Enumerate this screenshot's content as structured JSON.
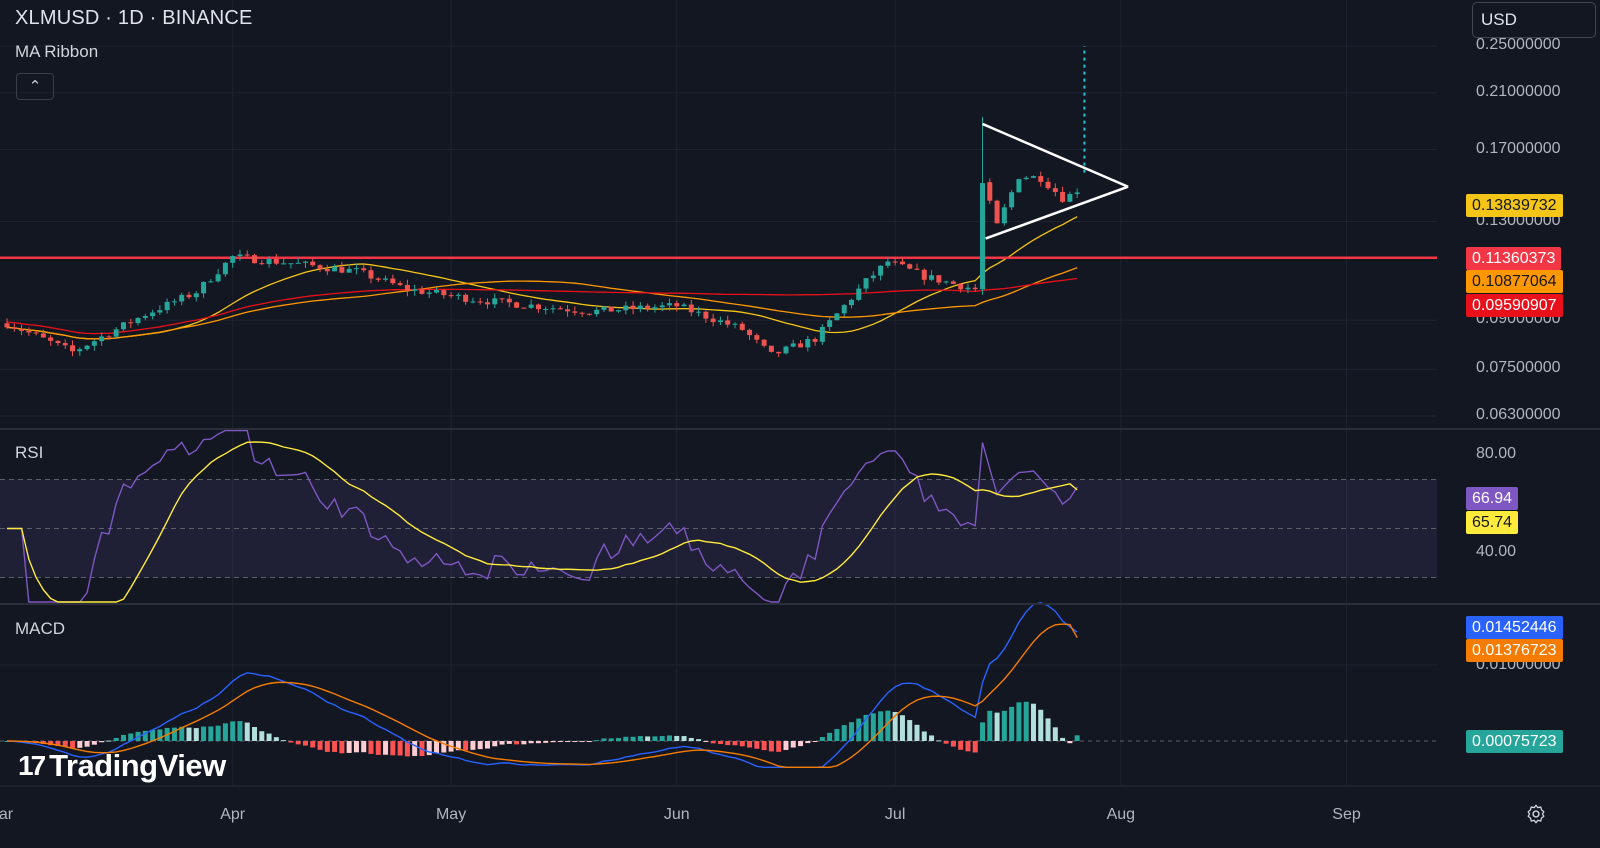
{
  "header": {
    "title": "XLMUSD · 1D · BINANCE",
    "currency": "USD",
    "collapse_icon": "chevron-up-icon"
  },
  "indicators": {
    "ma_label": "MA Ribbon",
    "rsi_label": "RSI",
    "macd_label": "MACD"
  },
  "price_axis": {
    "ticks": [
      "0.25000000",
      "0.21000000",
      "0.17000000",
      "0.13000000",
      "0.09000000",
      "0.07500000",
      "0.06300000"
    ],
    "badges": [
      {
        "value": "0.13839732",
        "bg": "#f5c518",
        "fg": "#131722"
      },
      {
        "value": "0.11360373",
        "bg": "#f23645",
        "fg": "#ffffff"
      },
      {
        "value": "0.10877064",
        "bg": "#ff9800",
        "fg": "#131722"
      },
      {
        "value": "0.09590907",
        "bg": "#e8101a",
        "fg": "#ffffff"
      }
    ]
  },
  "rsi_axis": {
    "ticks": [
      "80.00",
      "40.00"
    ],
    "badges": [
      {
        "value": "66.94",
        "bg": "#7e57c2",
        "fg": "#ffffff"
      },
      {
        "value": "65.74",
        "bg": "#ffeb3b",
        "fg": "#131722"
      }
    ]
  },
  "macd_axis": {
    "ticks": [
      "0.01000000"
    ],
    "badges": [
      {
        "value": "0.01452446",
        "bg": "#2962ff",
        "fg": "#ffffff"
      },
      {
        "value": "0.01376723",
        "bg": "#f57c00",
        "fg": "#ffffff"
      },
      {
        "value": "0.00075723",
        "bg": "#26a69a",
        "fg": "#ffffff"
      }
    ]
  },
  "time_axis": {
    "labels": [
      "ar",
      "Apr",
      "May",
      "Jun",
      "Jul",
      "Aug",
      "Sep"
    ]
  },
  "watermark": "TradingView",
  "settings_icon": "gear-icon",
  "colors": {
    "background": "#131722",
    "up": "#26a69a",
    "down": "#ef5350",
    "support_line": "#f23645",
    "ma_fast": "#f5c518",
    "ma_mid": "#ff9800",
    "ma_slow": "#e8101a",
    "rsi": "#7e57c2",
    "rsi_ma": "#ffeb3b",
    "macd": "#2962ff",
    "signal": "#f57c00"
  },
  "chart_data": {
    "type": "candlestick",
    "symbol": "XLMUSD",
    "interval": "1D",
    "exchange": "BINANCE",
    "price_ylim_log": [
      0.06,
      0.26
    ],
    "support_level": 0.11360373,
    "last_close": 0.1449,
    "x_dates": [
      "2023-03-01",
      "2023-07-26"
    ],
    "close_path": [
      [
        "2023-03-01",
        0.089
      ],
      [
        "2023-03-10",
        0.08
      ],
      [
        "2023-03-20",
        0.092
      ],
      [
        "2023-03-27",
        0.1
      ],
      [
        "2023-04-01",
        0.114
      ],
      [
        "2023-04-10",
        0.111
      ],
      [
        "2023-04-18",
        0.108
      ],
      [
        "2023-04-25",
        0.101
      ],
      [
        "2023-05-05",
        0.097
      ],
      [
        "2023-05-20",
        0.093
      ],
      [
        "2023-06-01",
        0.095
      ],
      [
        "2023-06-10",
        0.087
      ],
      [
        "2023-06-14",
        0.079
      ],
      [
        "2023-06-20",
        0.084
      ],
      [
        "2023-06-27",
        0.104
      ],
      [
        "2023-06-30",
        0.112
      ],
      [
        "2023-07-05",
        0.106
      ],
      [
        "2023-07-12",
        0.101
      ],
      [
        "2023-07-13",
        0.15
      ],
      [
        "2023-07-15",
        0.128
      ],
      [
        "2023-07-18",
        0.154
      ],
      [
        "2023-07-21",
        0.153
      ],
      [
        "2023-07-24",
        0.142
      ],
      [
        "2023-07-26",
        0.1449
      ]
    ],
    "series": [
      {
        "name": "RSI",
        "last": 66.94
      },
      {
        "name": "RSI MA",
        "last": 65.74
      },
      {
        "name": "MACD",
        "last": 0.01452446
      },
      {
        "name": "Signal",
        "last": 0.01376723
      },
      {
        "name": "Histogram",
        "last": 0.00075723
      }
    ],
    "rsi_ylim": [
      20,
      90
    ],
    "macd_ylim": [
      -0.004,
      0.02
    ],
    "grid": true
  }
}
